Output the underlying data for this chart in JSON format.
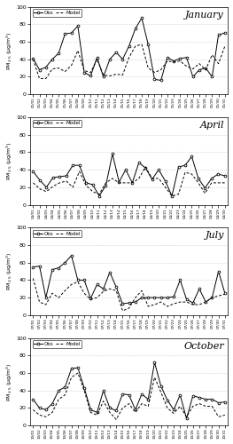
{
  "january": {
    "title": "January",
    "x_labels": [
      "01/01",
      "01/02",
      "01/03",
      "01/04",
      "01/05",
      "01/06",
      "01/07",
      "01/08",
      "01/09",
      "01/10",
      "01/11",
      "01/12",
      "01/13",
      "01/14",
      "01/15",
      "01/16",
      "01/17",
      "01/18",
      "01/19",
      "01/20",
      "01/21",
      "01/22",
      "01/23",
      "01/24",
      "01/25",
      "01/26",
      "01/27",
      "01/28",
      "01/29",
      "01/30",
      "01/31"
    ],
    "obs": [
      41,
      28,
      31,
      40,
      47,
      69,
      70,
      78,
      25,
      21,
      42,
      20,
      40,
      48,
      40,
      55,
      75,
      87,
      57,
      17,
      16,
      42,
      38,
      41,
      42,
      20,
      28,
      30,
      20,
      68,
      70
    ],
    "model": [
      40,
      18,
      18,
      29,
      30,
      26,
      33,
      50,
      27,
      25,
      40,
      22,
      21,
      23,
      22,
      42,
      55,
      57,
      30,
      25,
      28,
      38,
      37,
      38,
      32,
      29,
      35,
      28,
      45,
      35,
      55
    ]
  },
  "april": {
    "title": "April",
    "x_labels": [
      "04/01",
      "04/02",
      "04/03",
      "04/04",
      "04/05",
      "04/06",
      "04/07",
      "04/08",
      "04/09",
      "04/10",
      "04/11",
      "04/12",
      "04/13",
      "04/14",
      "04/15",
      "04/16",
      "04/17",
      "04/18",
      "04/19",
      "04/20",
      "04/21",
      "04/22",
      "04/23",
      "04/24",
      "04/25",
      "04/26",
      "04/27",
      "04/28",
      "04/29",
      "04/30"
    ],
    "obs": [
      38,
      28,
      20,
      31,
      32,
      33,
      45,
      45,
      25,
      23,
      10,
      22,
      58,
      26,
      40,
      25,
      48,
      42,
      29,
      40,
      27,
      10,
      43,
      45,
      55,
      30,
      19,
      30,
      35,
      33
    ],
    "model": [
      25,
      18,
      15,
      21,
      25,
      27,
      20,
      38,
      22,
      15,
      12,
      25,
      30,
      25,
      25,
      25,
      30,
      43,
      30,
      30,
      20,
      10,
      12,
      37,
      35,
      25,
      13,
      25,
      25,
      25
    ]
  },
  "july": {
    "title": "July",
    "x_labels": [
      "07/01",
      "07/02",
      "07/03",
      "07/04",
      "07/05",
      "07/06",
      "07/07",
      "07/08",
      "07/09",
      "07/10",
      "07/11",
      "07/12",
      "07/13",
      "07/14",
      "07/15",
      "07/16",
      "07/17",
      "07/18",
      "07/19",
      "07/20",
      "07/21",
      "07/22",
      "07/23",
      "07/24",
      "07/25",
      "07/26",
      "07/27",
      "07/28",
      "07/29",
      "07/30",
      "07/31"
    ],
    "obs": [
      55,
      56,
      20,
      52,
      54,
      60,
      68,
      40,
      40,
      19,
      35,
      30,
      49,
      32,
      13,
      14,
      15,
      20,
      20,
      20,
      20,
      20,
      21,
      40,
      18,
      14,
      30,
      15,
      20,
      50,
      25
    ],
    "model": [
      42,
      15,
      12,
      25,
      20,
      28,
      35,
      38,
      25,
      18,
      20,
      27,
      30,
      28,
      5,
      8,
      20,
      28,
      10,
      12,
      15,
      10,
      13,
      15,
      15,
      12,
      12,
      15,
      20,
      22,
      24
    ]
  },
  "october": {
    "title": "October",
    "x_labels": [
      "10/01",
      "10/02",
      "10/03",
      "10/04",
      "10/05",
      "10/06",
      "10/07",
      "10/08",
      "10/09",
      "10/10",
      "10/11",
      "10/12",
      "10/13",
      "10/14",
      "10/15",
      "10/16",
      "10/17",
      "10/18",
      "10/19",
      "10/20",
      "10/21",
      "10/22",
      "10/23",
      "10/24",
      "10/25",
      "10/26",
      "10/27",
      "10/28",
      "10/29",
      "10/30",
      "10/31"
    ],
    "obs": [
      30,
      20,
      18,
      25,
      40,
      44,
      65,
      66,
      43,
      18,
      15,
      40,
      20,
      17,
      36,
      35,
      18,
      36,
      30,
      72,
      45,
      29,
      18,
      35,
      8,
      34,
      32,
      30,
      30,
      26,
      27
    ],
    "model": [
      18,
      12,
      10,
      15,
      30,
      35,
      55,
      60,
      40,
      15,
      12,
      28,
      15,
      7,
      20,
      25,
      15,
      25,
      22,
      55,
      38,
      20,
      14,
      22,
      10,
      22,
      25,
      22,
      22,
      10,
      12
    ]
  },
  "ylim": [
    0,
    100
  ],
  "yticks": [
    0,
    20,
    40,
    60,
    80,
    100
  ],
  "obs_color": "#000000",
  "model_color": "#666666",
  "grid_color": "#bbbbbb",
  "bg_color": "#ffffff",
  "ylabel": "PM$_{2.5}$ (μg/m$^3$)",
  "obs_label": "Obs",
  "model_label": "Model"
}
